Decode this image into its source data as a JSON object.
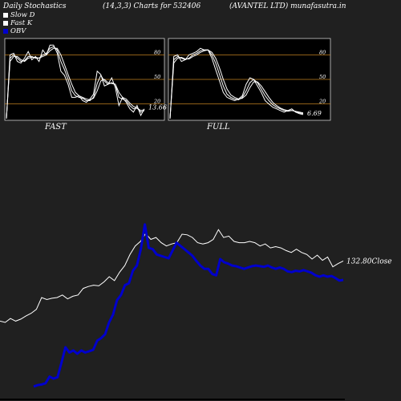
{
  "header": {
    "left": "Daily Stochastics",
    "center": "(14,3,3) Charts for 532406",
    "right": "(AVANTEL LTD) munafasutra.in"
  },
  "legend": {
    "slow_d": "Slow  D",
    "fast_k": "Fast K",
    "obv": "OBV"
  },
  "colors": {
    "background": "#202020",
    "panel_bg": "#000000",
    "level_line": "#c08020",
    "stoch_line": "#ffffff",
    "price_line": "#ffffff",
    "obv_line": "#0000cc"
  },
  "chart_data": [
    {
      "type": "line",
      "title": "FAST",
      "ylim": [
        0,
        100
      ],
      "levels": [
        20,
        50,
        80
      ],
      "tick_labels": [
        "80",
        "50",
        "20"
      ],
      "end_value_label": "13.66",
      "series": [
        {
          "values": [
            2,
            80,
            82,
            72,
            70,
            76,
            84,
            74,
            78,
            72,
            86,
            80,
            92,
            92,
            82,
            60,
            55,
            44,
            28,
            28,
            30,
            24,
            22,
            26,
            32,
            60,
            56,
            42,
            44,
            52,
            40,
            18,
            28,
            22,
            14,
            10,
            18,
            6,
            14
          ]
        },
        {
          "values": [
            2,
            76,
            80,
            76,
            72,
            73,
            78,
            78,
            76,
            76,
            80,
            82,
            88,
            90,
            86,
            72,
            62,
            50,
            36,
            30,
            28,
            27,
            24,
            24,
            28,
            45,
            55,
            48,
            44,
            46,
            44,
            28,
            26,
            24,
            18,
            14,
            15,
            10,
            12
          ]
        },
        {
          "values": [
            2,
            72,
            78,
            78,
            74,
            72,
            76,
            77,
            77,
            76,
            78,
            80,
            85,
            88,
            88,
            80,
            68,
            56,
            44,
            34,
            30,
            28,
            26,
            25,
            27,
            36,
            48,
            50,
            46,
            45,
            44,
            34,
            28,
            26,
            21,
            17,
            15,
            12,
            13
          ]
        }
      ]
    },
    {
      "type": "line",
      "title": "FULL",
      "ylim": [
        0,
        100
      ],
      "levels": [
        20,
        50,
        80
      ],
      "tick_labels": [
        "80",
        "50",
        "20"
      ],
      "end_value_label": "6.69",
      "series": [
        {
          "values": [
            2,
            78,
            80,
            72,
            74,
            80,
            82,
            84,
            88,
            86,
            86,
            76,
            62,
            48,
            34,
            28,
            26,
            24,
            26,
            30,
            44,
            52,
            50,
            42,
            34,
            24,
            20,
            16,
            14,
            12,
            10,
            12,
            14,
            10,
            8,
            7
          ]
        },
        {
          "values": [
            2,
            74,
            78,
            76,
            74,
            76,
            80,
            82,
            85,
            86,
            86,
            80,
            70,
            56,
            42,
            32,
            28,
            26,
            25,
            28,
            36,
            46,
            50,
            46,
            38,
            30,
            24,
            19,
            16,
            14,
            12,
            11,
            12,
            11,
            9,
            8
          ]
        },
        {
          "values": [
            2,
            70,
            76,
            77,
            75,
            75,
            78,
            80,
            83,
            85,
            86,
            83,
            76,
            64,
            50,
            38,
            31,
            28,
            26,
            27,
            31,
            40,
            47,
            47,
            42,
            35,
            28,
            22,
            18,
            15,
            13,
            12,
            12,
            11,
            10,
            9
          ]
        }
      ]
    },
    {
      "type": "line",
      "title": "",
      "close_label": "132.80Close",
      "series": [
        {
          "values": [
            300,
            298,
            304,
            300,
            303,
            308,
            312,
            318,
            336,
            333,
            335,
            336,
            340,
            334,
            338,
            340,
            350,
            353,
            355,
            354,
            360,
            368,
            362,
            375,
            385,
            402,
            415,
            422,
            434,
            425,
            428,
            420,
            415,
            418,
            420,
            433,
            432,
            428,
            420,
            418,
            420,
            425,
            440,
            428,
            430,
            422,
            420,
            420,
            422,
            420,
            415,
            418,
            412,
            414,
            412,
            408,
            405,
            410,
            405,
            402,
            395,
            401,
            393,
            398,
            383,
            388,
            392
          ]
        },
        {
          "values": [
            200,
            202,
            203,
            205,
            215,
            212,
            214,
            236,
            260,
            252,
            255,
            250,
            255,
            252,
            254,
            256,
            270,
            274,
            280,
            298,
            310,
            332,
            340,
            355,
            358,
            377,
            385,
            410,
            448,
            412,
            410,
            402,
            400,
            398,
            396,
            408,
            420,
            415,
            410,
            405,
            400,
            392,
            385,
            380,
            380,
            372,
            370,
            395,
            390,
            388,
            385,
            384,
            382,
            380,
            382,
            384,
            385,
            384,
            383,
            385,
            382,
            380,
            382,
            380,
            376,
            375,
            377,
            376,
            378,
            376,
            374,
            370,
            368,
            370,
            368,
            369,
            366,
            362,
            363
          ]
        }
      ]
    }
  ]
}
